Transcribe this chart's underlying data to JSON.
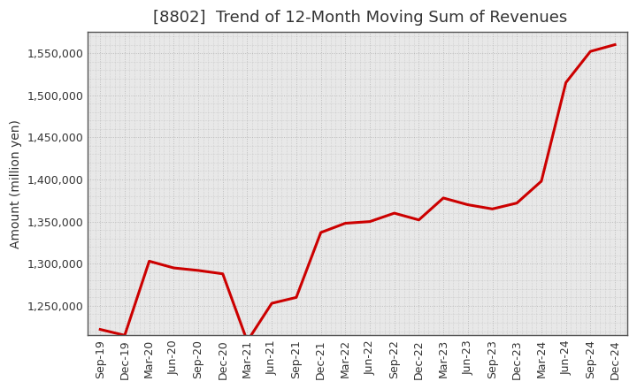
{
  "title": "[8802]  Trend of 12-Month Moving Sum of Revenues",
  "ylabel": "Amount (million yen)",
  "plot_bg_color": "#e8e8e8",
  "fig_bg_color": "#ffffff",
  "line_color": "#cc0000",
  "grid_color": "#bbbbbb",
  "title_fontsize": 13,
  "title_color": "#333333",
  "label_fontsize": 10,
  "tick_fontsize": 9,
  "x_labels": [
    "Sep-19",
    "Dec-19",
    "Mar-20",
    "Jun-20",
    "Sep-20",
    "Dec-20",
    "Mar-21",
    "Jun-21",
    "Sep-21",
    "Dec-21",
    "Mar-22",
    "Jun-22",
    "Sep-22",
    "Dec-22",
    "Mar-23",
    "Jun-23",
    "Sep-23",
    "Dec-23",
    "Mar-24",
    "Jun-24",
    "Sep-24",
    "Dec-24"
  ],
  "values": [
    1222000,
    1215000,
    1303000,
    1295000,
    1292000,
    1288000,
    1208000,
    1253000,
    1260000,
    1337000,
    1348000,
    1350000,
    1360000,
    1352000,
    1378000,
    1370000,
    1365000,
    1372000,
    1398000,
    1515000,
    1552000,
    1560000
  ],
  "ylim_min": 1215000,
  "ylim_max": 1575000,
  "yticks": [
    1250000,
    1300000,
    1350000,
    1400000,
    1450000,
    1500000,
    1550000
  ],
  "line_width": 2.2
}
